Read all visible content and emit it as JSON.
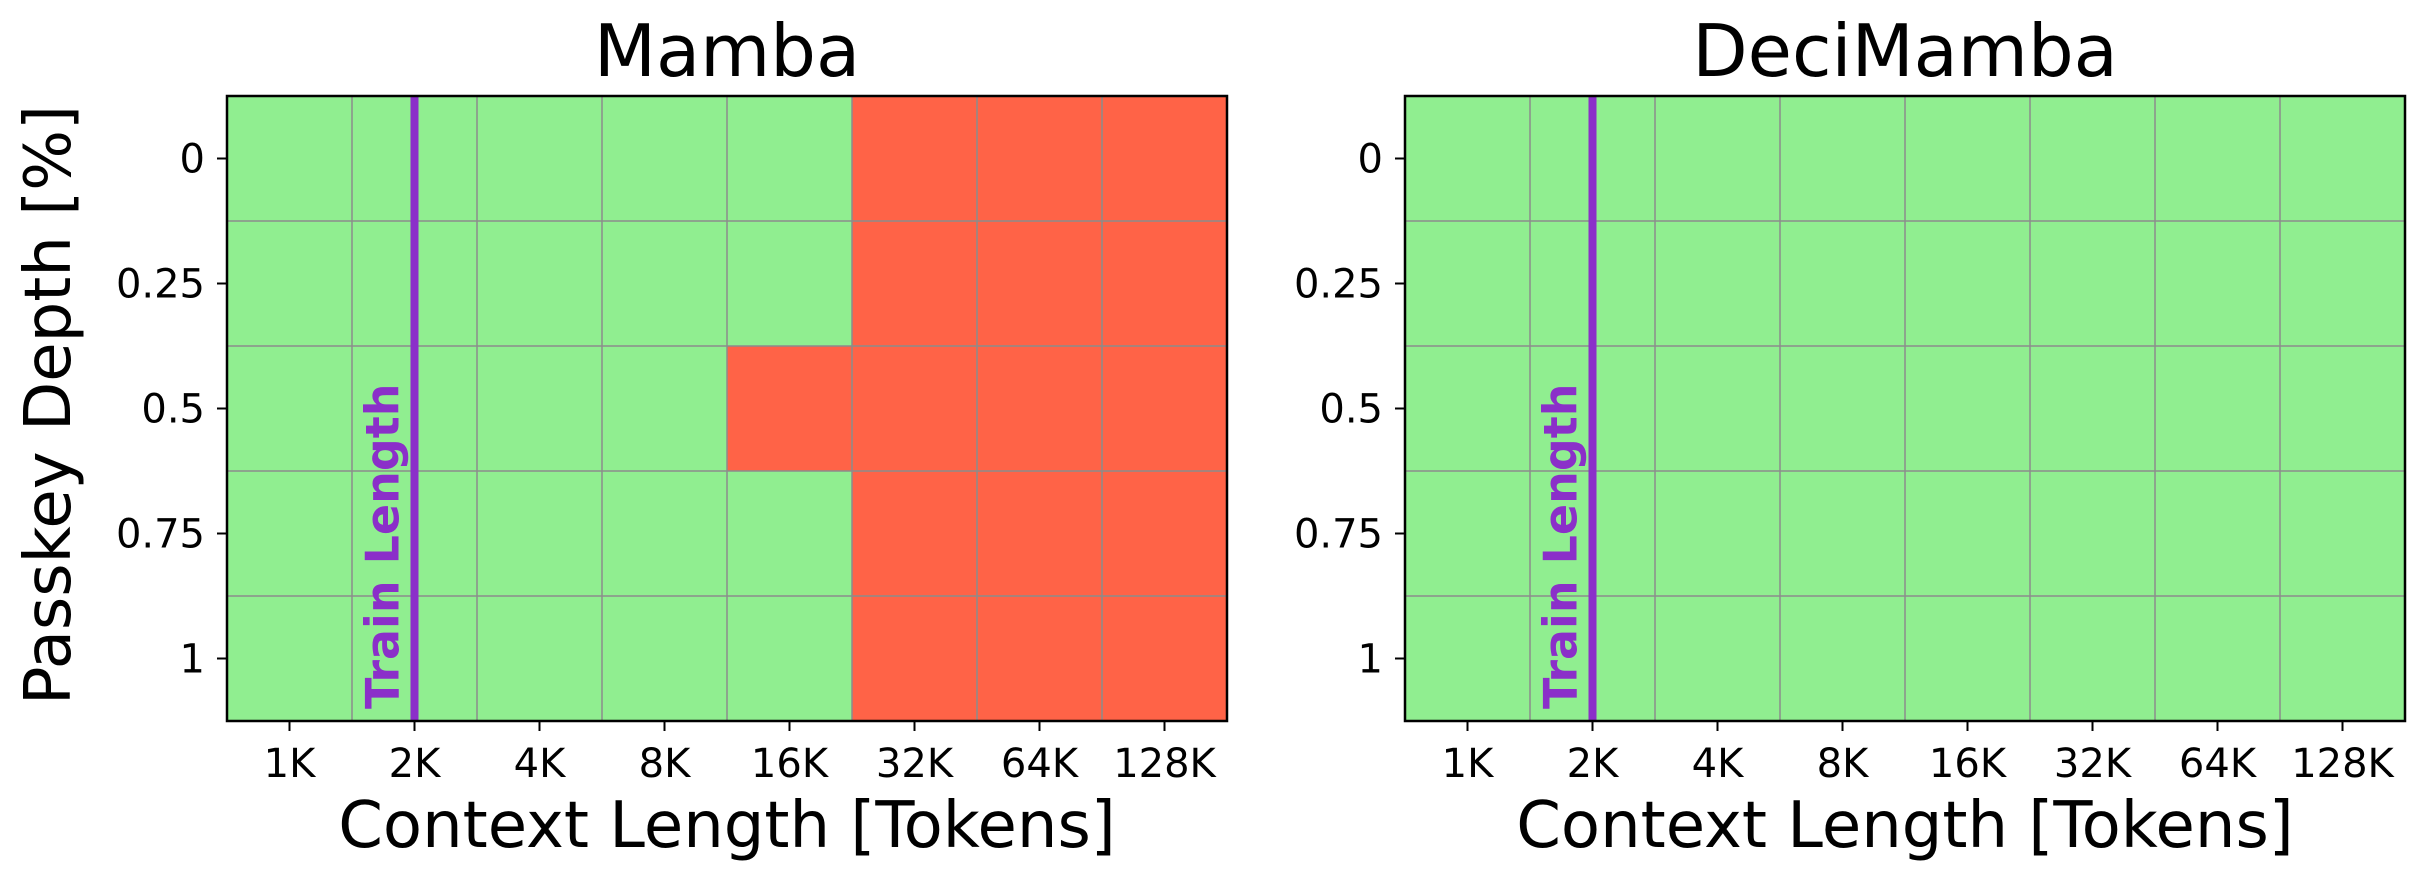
{
  "chart_data": [
    {
      "type": "heatmap",
      "title": "Mamba",
      "xlabel": "Context Length [Tokens]",
      "ylabel": "Passkey Depth [%]",
      "x_categories": [
        "1K",
        "2K",
        "4K",
        "8K",
        "16K",
        "32K",
        "64K",
        "128K"
      ],
      "y_categories": [
        "0",
        "0.25",
        "0.5",
        "0.75",
        "1"
      ],
      "values": [
        [
          1,
          1,
          1,
          1,
          1,
          0,
          0,
          0
        ],
        [
          1,
          1,
          1,
          1,
          1,
          0,
          0,
          0
        ],
        [
          1,
          1,
          1,
          1,
          0,
          0,
          0,
          0
        ],
        [
          1,
          1,
          1,
          1,
          1,
          0,
          0,
          0
        ],
        [
          1,
          1,
          1,
          1,
          1,
          0,
          0,
          0
        ]
      ],
      "value_colors": {
        "1": "#90ee90",
        "0": "#ff6347"
      },
      "marker": {
        "label": "Train Length",
        "at": "2K",
        "color": "#8b2fc9"
      },
      "grid": true
    },
    {
      "type": "heatmap",
      "title": "DeciMamba",
      "xlabel": "Context Length [Tokens]",
      "ylabel": "",
      "x_categories": [
        "1K",
        "2K",
        "4K",
        "8K",
        "16K",
        "32K",
        "64K",
        "128K"
      ],
      "y_categories": [
        "0",
        "0.25",
        "0.5",
        "0.75",
        "1"
      ],
      "values": [
        [
          1,
          1,
          1,
          1,
          1,
          1,
          1,
          1
        ],
        [
          1,
          1,
          1,
          1,
          1,
          1,
          1,
          1
        ],
        [
          1,
          1,
          1,
          1,
          1,
          1,
          1,
          1
        ],
        [
          1,
          1,
          1,
          1,
          1,
          1,
          1,
          1
        ],
        [
          1,
          1,
          1,
          1,
          1,
          1,
          1,
          1
        ]
      ],
      "value_colors": {
        "1": "#90ee90",
        "0": "#ff6347"
      },
      "marker": {
        "label": "Train Length",
        "at": "2K",
        "color": "#8b2fc9"
      },
      "grid": true
    }
  ]
}
